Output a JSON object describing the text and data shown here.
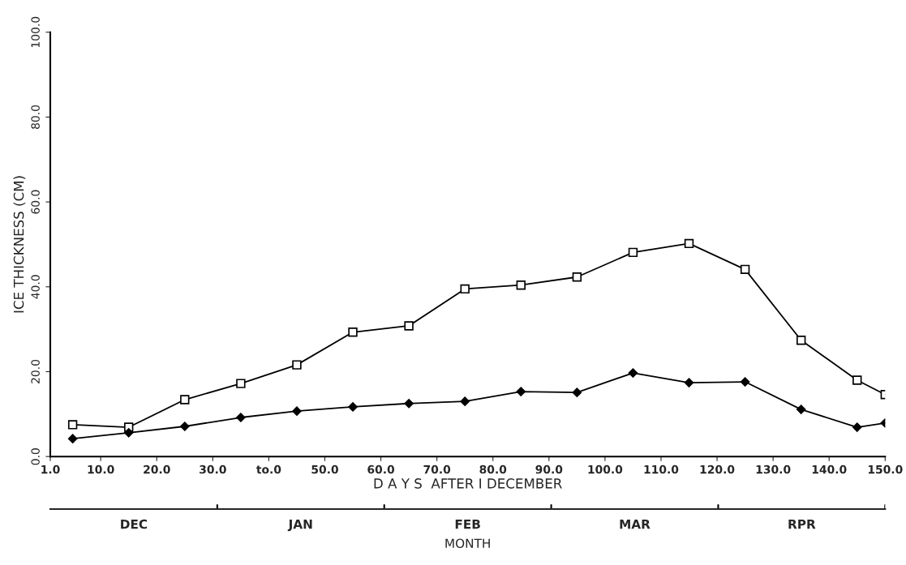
{
  "chart_data": [
    {
      "type": "line",
      "xlabel": "D A Y S  AFTER I DECEMBER",
      "ylabel": "ICE THICKNESS (CM)",
      "xlim": [
        1,
        150
      ],
      "ylim": [
        0,
        100
      ],
      "xticks": [
        {
          "value": 1,
          "label": "1.0"
        },
        {
          "value": 10,
          "label": "10.0"
        },
        {
          "value": 20,
          "label": "20.0"
        },
        {
          "value": 30,
          "label": "30.0"
        },
        {
          "value": 40,
          "label": "to.0"
        },
        {
          "value": 50,
          "label": "50.0"
        },
        {
          "value": 60,
          "label": "60.0"
        },
        {
          "value": 70,
          "label": "70.0"
        },
        {
          "value": 80,
          "label": "80.0"
        },
        {
          "value": 90,
          "label": "90.0"
        },
        {
          "value": 100,
          "label": "100.0"
        },
        {
          "value": 110,
          "label": "110.0"
        },
        {
          "value": 120,
          "label": "120.0"
        },
        {
          "value": 130,
          "label": "130.0"
        },
        {
          "value": 140,
          "label": "140.0"
        },
        {
          "value": 150,
          "label": "150.0"
        }
      ],
      "yticks": [
        {
          "value": 0,
          "label": "0.0"
        },
        {
          "value": 20,
          "label": "20.0"
        },
        {
          "value": 40,
          "label": "40.0"
        },
        {
          "value": 60,
          "label": "60.0"
        },
        {
          "value": 80,
          "label": "80.0"
        },
        {
          "value": 100,
          "label": "100.0"
        }
      ],
      "grid": false,
      "series": [
        {
          "color": "#000000",
          "marker": "square",
          "x": [
            5,
            15,
            25,
            35,
            45,
            55,
            65,
            75,
            85,
            95,
            105,
            115,
            125,
            135,
            145,
            150
          ],
          "values": [
            7.5,
            6.9,
            13.4,
            17.2,
            21.6,
            29.3,
            30.8,
            39.5,
            40.4,
            42.3,
            48.1,
            50.2,
            44.1,
            27.4,
            18.0,
            14.6
          ]
        },
        {
          "color": "#000000",
          "marker": "diamond",
          "x": [
            5,
            15,
            25,
            35,
            45,
            55,
            65,
            75,
            85,
            95,
            105,
            115,
            125,
            135,
            145,
            150
          ],
          "values": [
            4.2,
            5.6,
            7.1,
            9.2,
            10.7,
            11.7,
            12.5,
            13.0,
            15.3,
            15.1,
            19.7,
            17.4,
            17.6,
            11.1,
            6.9,
            7.9
          ]
        }
      ]
    },
    {
      "type": "other",
      "categories": [
        "DEC",
        "JAN",
        "FEB",
        "MAR",
        "RPR"
      ],
      "xlabel": "MONTH"
    }
  ]
}
